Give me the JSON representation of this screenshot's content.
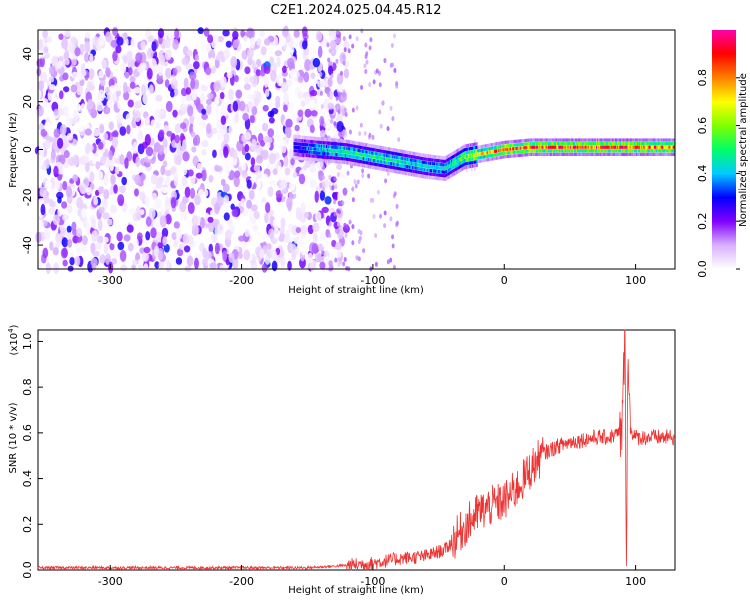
{
  "title": "C2E1.2024.025.04.45.R12",
  "chart_data": [
    {
      "type": "heatmap",
      "xlabel": "Height of straight line (km)",
      "ylabel": "Frequency (Hz)",
      "xlim": [
        -355,
        130
      ],
      "ylim": [
        -50,
        50
      ],
      "xticks": [
        -300,
        -200,
        -100,
        0,
        100
      ],
      "yticks": [
        -40,
        -20,
        0,
        20,
        40
      ],
      "colorbar": {
        "label": "Normalized spectral amplitude",
        "range": [
          0.0,
          1.0
        ],
        "ticks": [
          "0.0",
          "0.2",
          "0.4",
          "0.6",
          "0.8"
        ],
        "colors": [
          "#ffffff",
          "#d8b0ff",
          "#8000ff",
          "#0000ff",
          "#00ccff",
          "#00ff66",
          "#80ff00",
          "#ffff00",
          "#ff8000",
          "#ff0000",
          "#ff00aa"
        ]
      },
      "signal_track": {
        "x": [
          -160,
          -140,
          -120,
          -100,
          -80,
          -60,
          -45,
          -30,
          -10,
          0,
          20,
          40,
          60,
          80,
          90,
          100,
          130
        ],
        "y": [
          1,
          0,
          -1,
          -3,
          -5,
          -7,
          -8,
          -3,
          -1,
          0,
          1,
          1,
          1,
          1,
          1,
          1,
          1
        ],
        "peak_amplitude": [
          0.3,
          0.45,
          0.5,
          0.5,
          0.5,
          0.45,
          0.45,
          0.6,
          0.8,
          0.9,
          0.9,
          0.9,
          0.9,
          0.9,
          0.95,
          0.9,
          0.85
        ]
      },
      "noise_region_xlim": [
        -355,
        -140
      ]
    },
    {
      "type": "line",
      "xlabel": "Height of straight line (km)",
      "ylabel": "SNR (10 * v/v)",
      "multiplier_label": "(x10",
      "multiplier_exp": "4",
      "multiplier_close": ")",
      "xlim": [
        -355,
        130
      ],
      "ylim": [
        0,
        1.05
      ],
      "xticks": [
        -300,
        -200,
        -100,
        0,
        100
      ],
      "yticks": [
        "0.0",
        "0.2",
        "0.4",
        "0.6",
        "0.8",
        "1.0"
      ],
      "color": "#ee3333",
      "x": [
        -355,
        -300,
        -250,
        -200,
        -150,
        -120,
        -100,
        -80,
        -60,
        -45,
        -40,
        -30,
        -20,
        -10,
        0,
        10,
        20,
        30,
        40,
        50,
        60,
        70,
        80,
        88,
        90,
        91,
        92,
        93,
        94,
        96,
        100,
        110,
        120,
        130
      ],
      "y": [
        0.01,
        0.01,
        0.01,
        0.01,
        0.01,
        0.02,
        0.03,
        0.05,
        0.06,
        0.09,
        0.12,
        0.19,
        0.25,
        0.28,
        0.3,
        0.36,
        0.44,
        0.51,
        0.54,
        0.56,
        0.57,
        0.58,
        0.58,
        0.6,
        0.62,
        0.9,
        1.05,
        0.1,
        0.9,
        0.62,
        0.58,
        0.58,
        0.58,
        0.58
      ]
    }
  ]
}
